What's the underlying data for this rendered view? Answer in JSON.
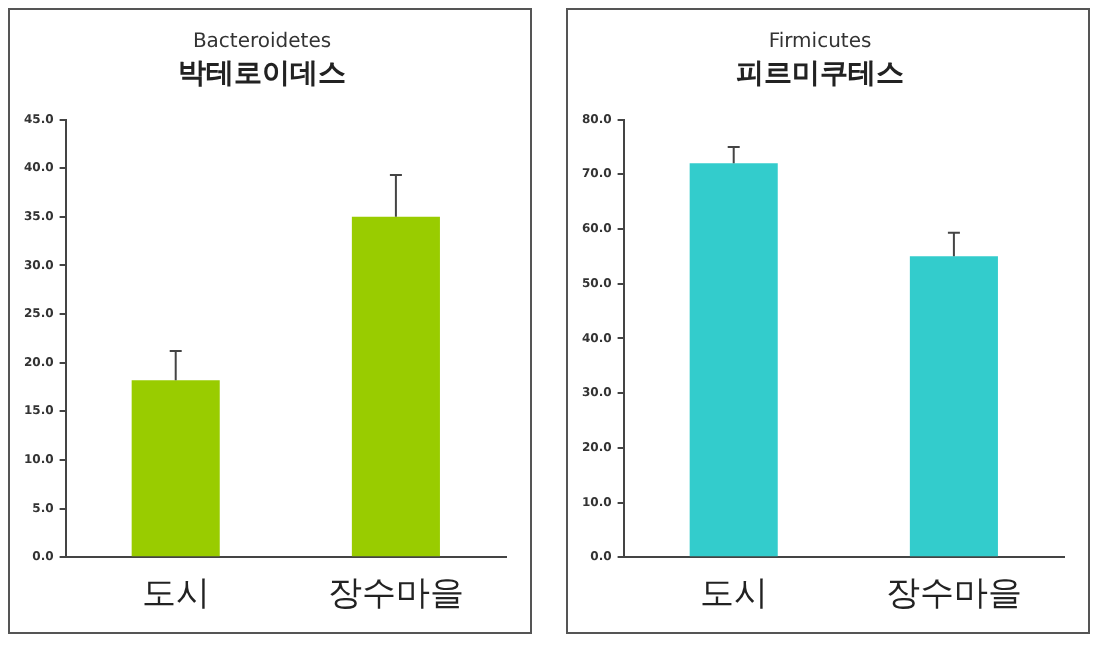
{
  "chart_data": [
    {
      "type": "bar",
      "title": "Bacteroidetes",
      "subtitle": "박테로이데스",
      "categories": [
        "도시",
        "장수마을"
      ],
      "values": [
        18.2,
        35.0
      ],
      "color": "#99cc00",
      "errors": [
        [
          18.2,
          21.2
        ],
        [
          35.0,
          39.3
        ]
      ],
      "ylim": [
        0,
        45
      ],
      "yticks": [
        {
          "value": 0,
          "label": "0.0"
        },
        {
          "value": 5,
          "label": "5.0"
        },
        {
          "value": 10,
          "label": "10.0"
        },
        {
          "value": 15,
          "label": "15.0"
        },
        {
          "value": 20,
          "label": "20.0"
        },
        {
          "value": 25,
          "label": "25.0"
        },
        {
          "value": 30,
          "label": "30.0"
        },
        {
          "value": 35,
          "label": "35.0"
        },
        {
          "value": 40,
          "label": "40.0"
        },
        {
          "value": 45,
          "label": "45.0"
        }
      ],
      "grid": false,
      "legend": false
    },
    {
      "type": "bar",
      "title": "Firmicutes",
      "subtitle": "피르미쿠테스",
      "categories": [
        "도시",
        "장수마을"
      ],
      "values": [
        72.0,
        55.0
      ],
      "color": "#33cccc",
      "errors": [
        [
          72.0,
          75.0
        ],
        [
          55.0,
          59.3
        ]
      ],
      "ylim": [
        0,
        80
      ],
      "yticks": [
        {
          "value": 0,
          "label": "0.0"
        },
        {
          "value": 10,
          "label": "10.0"
        },
        {
          "value": 20,
          "label": "20.0"
        },
        {
          "value": 30,
          "label": "30.0"
        },
        {
          "value": 40,
          "label": "40.0"
        },
        {
          "value": 50,
          "label": "50.0"
        },
        {
          "value": 60,
          "label": "60.0"
        },
        {
          "value": 70,
          "label": "70.0"
        },
        {
          "value": 80,
          "label": "80.0"
        }
      ],
      "grid": false,
      "legend": false
    }
  ]
}
